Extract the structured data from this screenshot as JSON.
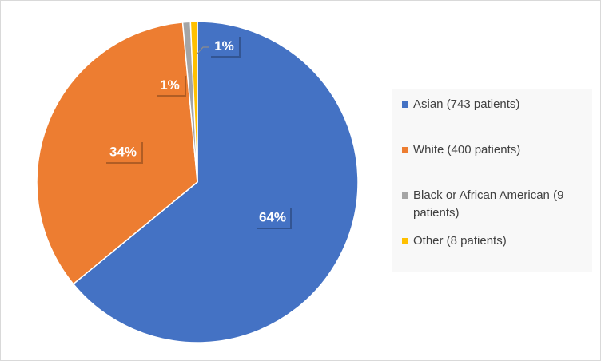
{
  "chart_data": {
    "type": "pie",
    "title": "",
    "start_angle_deg": 0,
    "direction": "clockwise",
    "legend_position": "right",
    "slices": [
      {
        "name": "Asian (743 patients)",
        "value": 743,
        "label": "64%",
        "color": "#4472C4",
        "label_bg": "#4472C4"
      },
      {
        "name": "White (400 patients)",
        "value": 400,
        "label": "34%",
        "color": "#ED7D31",
        "label_bg": "#ED7D31"
      },
      {
        "name": "Black or African American (9 patients)",
        "value": 9,
        "label": "1%",
        "color": "#A5A5A5",
        "label_bg": "#ED7D31"
      },
      {
        "name": "Other (8 patients)",
        "value": 8,
        "label": "1%",
        "color": "#FFC000",
        "label_bg": "#4472C4"
      }
    ]
  }
}
